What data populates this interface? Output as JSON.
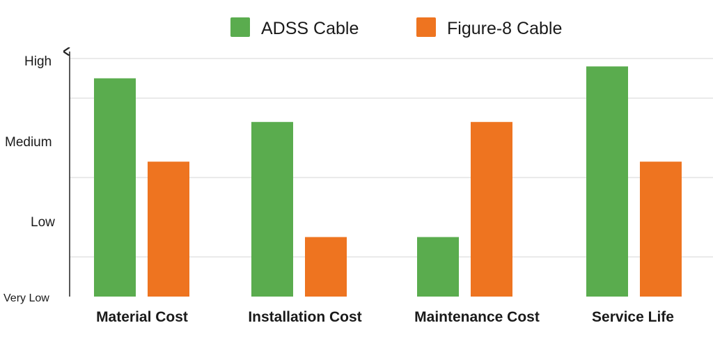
{
  "chart_data": {
    "type": "bar",
    "title": "",
    "xlabel": "",
    "ylabel": "",
    "y_tick_labels": [
      "Very Low",
      "Low",
      "Medium",
      "High"
    ],
    "ylim": [
      0,
      3
    ],
    "grid": true,
    "legend_position": "top-center",
    "categories": [
      "Material Cost",
      "Installation Cost",
      "Maintenance Cost",
      "Service Life"
    ],
    "series": [
      {
        "name": "ADSS Cable",
        "color": "#5aac4e",
        "values": [
          2.75,
          2.2,
          0.75,
          2.9
        ]
      },
      {
        "name": "Figure-8 Cable",
        "color": "#ee7420",
        "values": [
          1.7,
          0.75,
          2.2,
          1.7
        ]
      }
    ]
  }
}
